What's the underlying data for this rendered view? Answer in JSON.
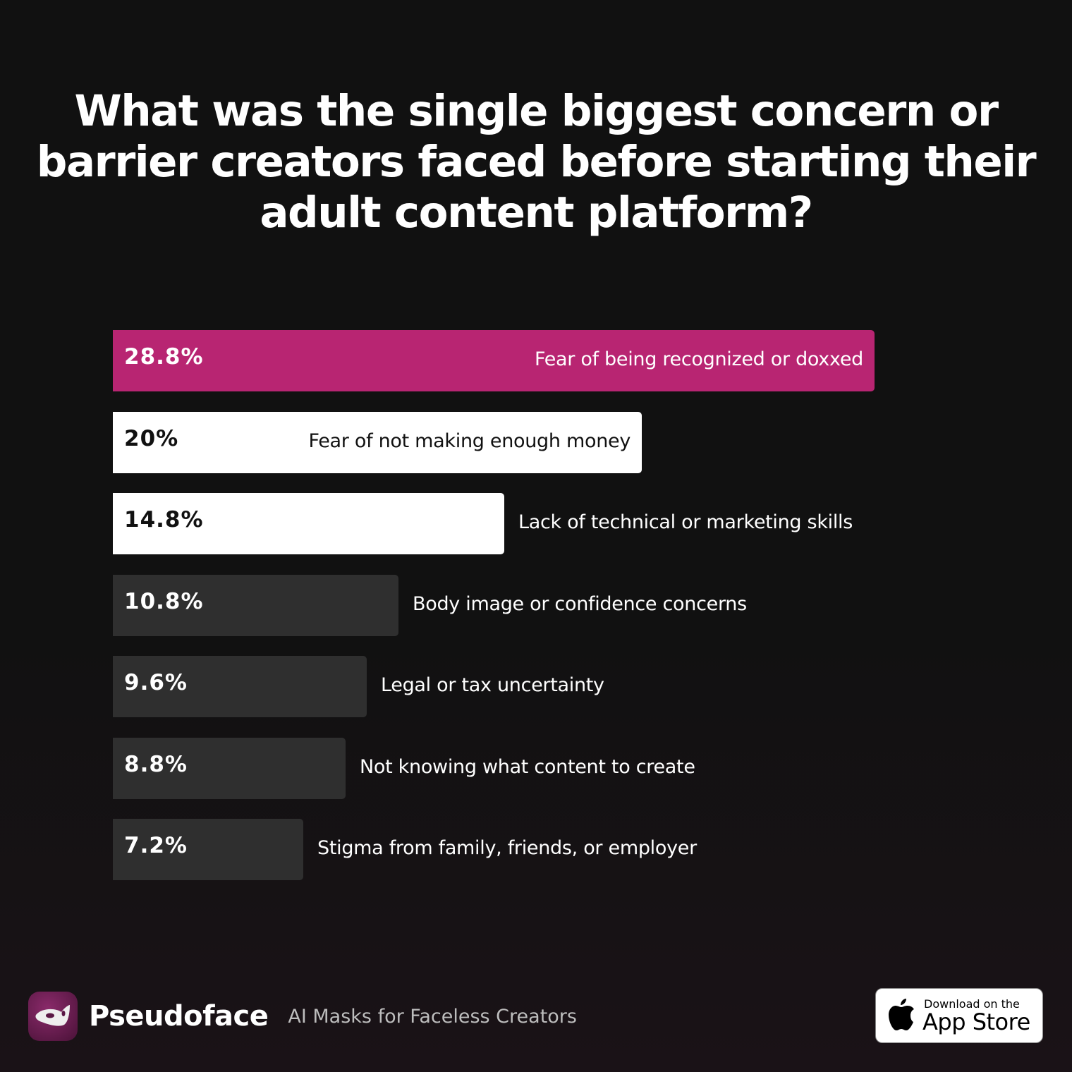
{
  "chart_data": {
    "type": "bar",
    "orientation": "horizontal",
    "title": "What was the single biggest concern or barrier creators faced before starting their adult content platform?",
    "categories": [
      "Fear of being recognized or doxxed",
      "Fear of not making enough money",
      "Lack of technical or marketing skills",
      "Body image or confidence concerns",
      "Legal or tax uncertainty",
      "Not knowing what content to create",
      "Stigma from family, friends, or employer"
    ],
    "values": [
      28.8,
      20,
      14.8,
      10.8,
      9.6,
      8.8,
      7.2
    ],
    "value_labels": [
      "28.8%",
      "20%",
      "14.8%",
      "10.8%",
      "9.6%",
      "8.8%",
      "7.2%"
    ],
    "bar_colors": [
      "#b82572",
      "#ffffff",
      "#ffffff",
      "#2f2f2f",
      "#2f2f2f",
      "#2f2f2f",
      "#2f2f2f"
    ],
    "xlim": [
      0,
      28.8
    ],
    "grid": false
  },
  "footer": {
    "brand": "Pseudoface",
    "tagline": "AI Masks for Faceless Creators",
    "logo_icon": "mask-icon",
    "badge_line1": "Download on the",
    "badge_line2": "App Store",
    "badge_icon": "apple-icon"
  }
}
